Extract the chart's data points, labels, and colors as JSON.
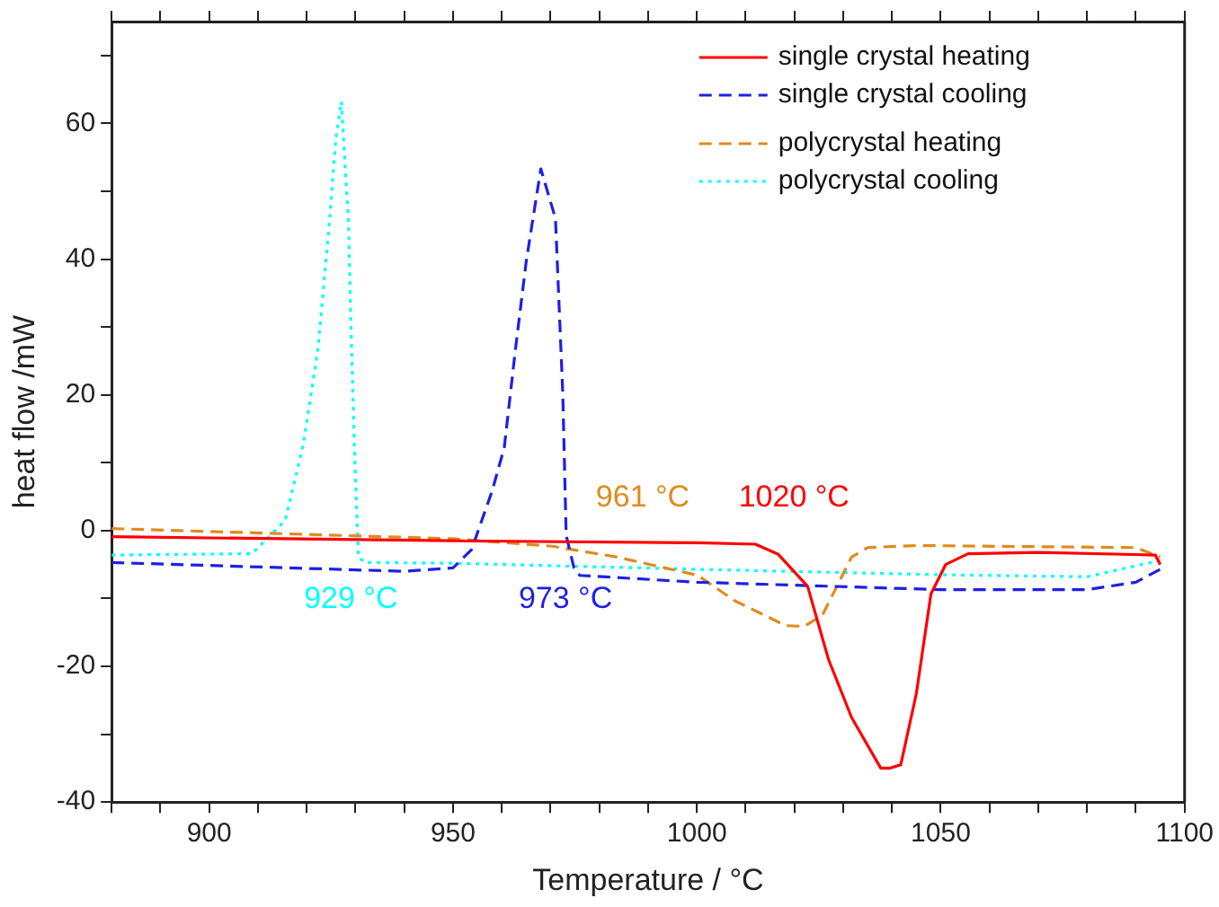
{
  "chart_data": {
    "type": "line",
    "xlabel": "Temperature / °C",
    "ylabel": "heat flow /mW",
    "xlim": [
      880,
      1100
    ],
    "ylim": [
      -40,
      75
    ],
    "xticks": [
      {
        "value": 880,
        "label": null
      },
      {
        "value": 890,
        "label": null
      },
      900,
      {
        "value": 910,
        "label": null
      },
      {
        "value": 920,
        "label": null
      },
      {
        "value": 930,
        "label": null
      },
      {
        "value": 940,
        "label": null
      },
      950,
      {
        "value": 960,
        "label": null
      },
      {
        "value": 970,
        "label": null
      },
      {
        "value": 980,
        "label": null
      },
      {
        "value": 990,
        "label": null
      },
      1000,
      {
        "value": 1010,
        "label": null
      },
      {
        "value": 1020,
        "label": null
      },
      {
        "value": 1030,
        "label": null
      },
      {
        "value": 1040,
        "label": null
      },
      1050,
      {
        "value": 1060,
        "label": null
      },
      {
        "value": 1070,
        "label": null
      },
      {
        "value": 1080,
        "label": null
      },
      {
        "value": 1090,
        "label": null
      },
      1100
    ],
    "yticks": [
      -40,
      {
        "value": -30,
        "label": null
      },
      -20,
      {
        "value": -10,
        "label": null
      },
      0,
      {
        "value": 10,
        "label": null
      },
      20,
      {
        "value": 30,
        "label": null
      },
      40,
      {
        "value": 50,
        "label": null
      },
      60,
      {
        "value": 70,
        "label": null
      }
    ],
    "grid": false,
    "legend": "top right",
    "marker": "none",
    "series": [
      {
        "name": "single crystal heating",
        "color": "#ff0000",
        "line_style": "solid",
        "x": [
          880,
          950,
          1000,
          1012,
          1016.7,
          1022.7,
          1027,
          1031.7,
          1037.7,
          1039.5,
          1041.8,
          1045,
          1048,
          1051,
          1055.6,
          1070,
          1094,
          1095
        ],
        "values": [
          -0.9,
          -1.5,
          -1.8,
          -2,
          -3.5,
          -8.2,
          -19,
          -27.5,
          -35,
          -35,
          -34.5,
          -24,
          -9.3,
          -5,
          -3.4,
          -3.2,
          -3.6,
          -5
        ]
      },
      {
        "name": "single crystal cooling",
        "color": "#1f1fe6",
        "line_style": "dashed",
        "x": [
          880,
          940,
          950,
          953.8,
          958,
          960.5,
          962.8,
          965,
          968,
          971,
          972.5,
          973.2,
          974.8,
          976,
          1000,
          1050,
          1080,
          1090,
          1095
        ],
        "values": [
          -4.7,
          -6,
          -5.5,
          -2.8,
          5.8,
          12.2,
          26.7,
          39.6,
          53.3,
          46,
          20.3,
          -0.7,
          -5.5,
          -6.6,
          -7.6,
          -8.7,
          -8.7,
          -7.6,
          -5.7
        ]
      },
      {
        "name": "polycrystal heating",
        "color": "#e08a1e",
        "line_style": "dashed",
        "x": [
          880,
          950,
          970.3,
          983.7,
          1000.2,
          1007.7,
          1018.2,
          1022,
          1025.7,
          1028.7,
          1031.7,
          1035,
          1045,
          1090,
          1095
        ],
        "values": [
          0.3,
          -1.2,
          -2.3,
          -3.9,
          -6.6,
          -10.3,
          -14,
          -14.1,
          -12.5,
          -8.2,
          -3.9,
          -2.5,
          -2.2,
          -2.5,
          -3.9
        ]
      },
      {
        "name": "polycrystal cooling",
        "color": "#00ffff",
        "line_style": "dotted",
        "x": [
          880,
          908.8,
          915.6,
          919.3,
          922.3,
          924.6,
          926,
          927.1,
          928.6,
          929,
          929.8,
          930.6,
          932,
          950,
          1000,
          1050,
          1080,
          1095
        ],
        "values": [
          -3.6,
          -3.4,
          1.5,
          12.7,
          26.7,
          45,
          57.9,
          63.2,
          45,
          32,
          11.7,
          -3.9,
          -4.7,
          -4.8,
          -5.7,
          -6.5,
          -6.8,
          -4.4
        ]
      }
    ],
    "annotations": [
      "929 °C",
      "973 °C",
      "961 °C",
      "1020 °C"
    ]
  }
}
